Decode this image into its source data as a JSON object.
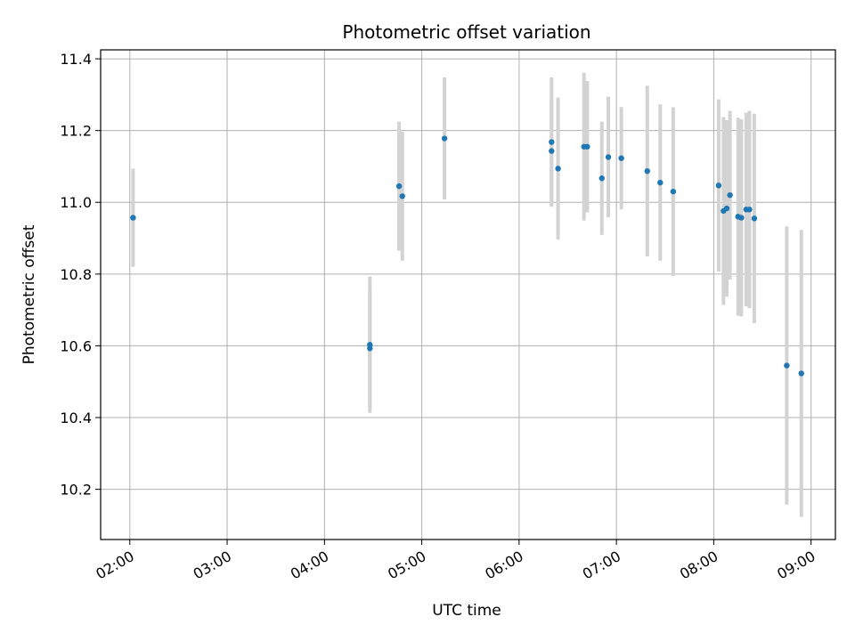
{
  "chart_data": {
    "type": "scatter",
    "title": "Photometric offset variation",
    "xlabel": "UTC time",
    "ylabel": "Photometric offset",
    "x_tick_labels": [
      "02:00",
      "03:00",
      "04:00",
      "05:00",
      "06:00",
      "07:00",
      "08:00",
      "09:00"
    ],
    "y_tick_labels": [
      "10.2",
      "10.4",
      "10.6",
      "10.8",
      "11.0",
      "11.2",
      "11.4"
    ],
    "xlim": [
      "01:42",
      "09:15"
    ],
    "ylim": [
      10.06,
      11.425
    ],
    "grid": true,
    "point_color": "#1f77b4",
    "errorbar_color": "#d3d3d3",
    "points": [
      {
        "x": "02:02",
        "y": 10.957,
        "err": 0.137
      },
      {
        "x": "04:28",
        "y": 10.593,
        "err": 0.17
      },
      {
        "x": "04:28",
        "y": 10.603,
        "err": 0.19
      },
      {
        "x": "04:46",
        "y": 11.045,
        "err": 0.18
      },
      {
        "x": "04:48",
        "y": 11.017,
        "err": 0.18
      },
      {
        "x": "05:14",
        "y": 11.178,
        "err": 0.17
      },
      {
        "x": "06:20",
        "y": 11.143,
        "err": 0.155
      },
      {
        "x": "06:20",
        "y": 11.168,
        "err": 0.18
      },
      {
        "x": "06:24",
        "y": 11.094,
        "err": 0.198
      },
      {
        "x": "06:40",
        "y": 11.155,
        "err": 0.206
      },
      {
        "x": "06:42",
        "y": 11.155,
        "err": 0.183
      },
      {
        "x": "06:51",
        "y": 11.067,
        "err": 0.158
      },
      {
        "x": "06:55",
        "y": 11.126,
        "err": 0.168
      },
      {
        "x": "07:03",
        "y": 11.123,
        "err": 0.143
      },
      {
        "x": "07:19",
        "y": 11.087,
        "err": 0.238
      },
      {
        "x": "07:27",
        "y": 11.055,
        "err": 0.218
      },
      {
        "x": "07:35",
        "y": 11.03,
        "err": 0.235
      },
      {
        "x": "08:03",
        "y": 11.047,
        "err": 0.24
      },
      {
        "x": "08:06",
        "y": 10.976,
        "err": 0.262
      },
      {
        "x": "08:08",
        "y": 10.983,
        "err": 0.246
      },
      {
        "x": "08:10",
        "y": 11.02,
        "err": 0.235
      },
      {
        "x": "08:15",
        "y": 10.96,
        "err": 0.276
      },
      {
        "x": "08:17",
        "y": 10.957,
        "err": 0.275
      },
      {
        "x": "08:20",
        "y": 10.98,
        "err": 0.27
      },
      {
        "x": "08:22",
        "y": 10.98,
        "err": 0.275
      },
      {
        "x": "08:25",
        "y": 10.955,
        "err": 0.292
      },
      {
        "x": "08:45",
        "y": 10.545,
        "err": 0.388
      },
      {
        "x": "08:54",
        "y": 10.523,
        "err": 0.4
      }
    ]
  }
}
